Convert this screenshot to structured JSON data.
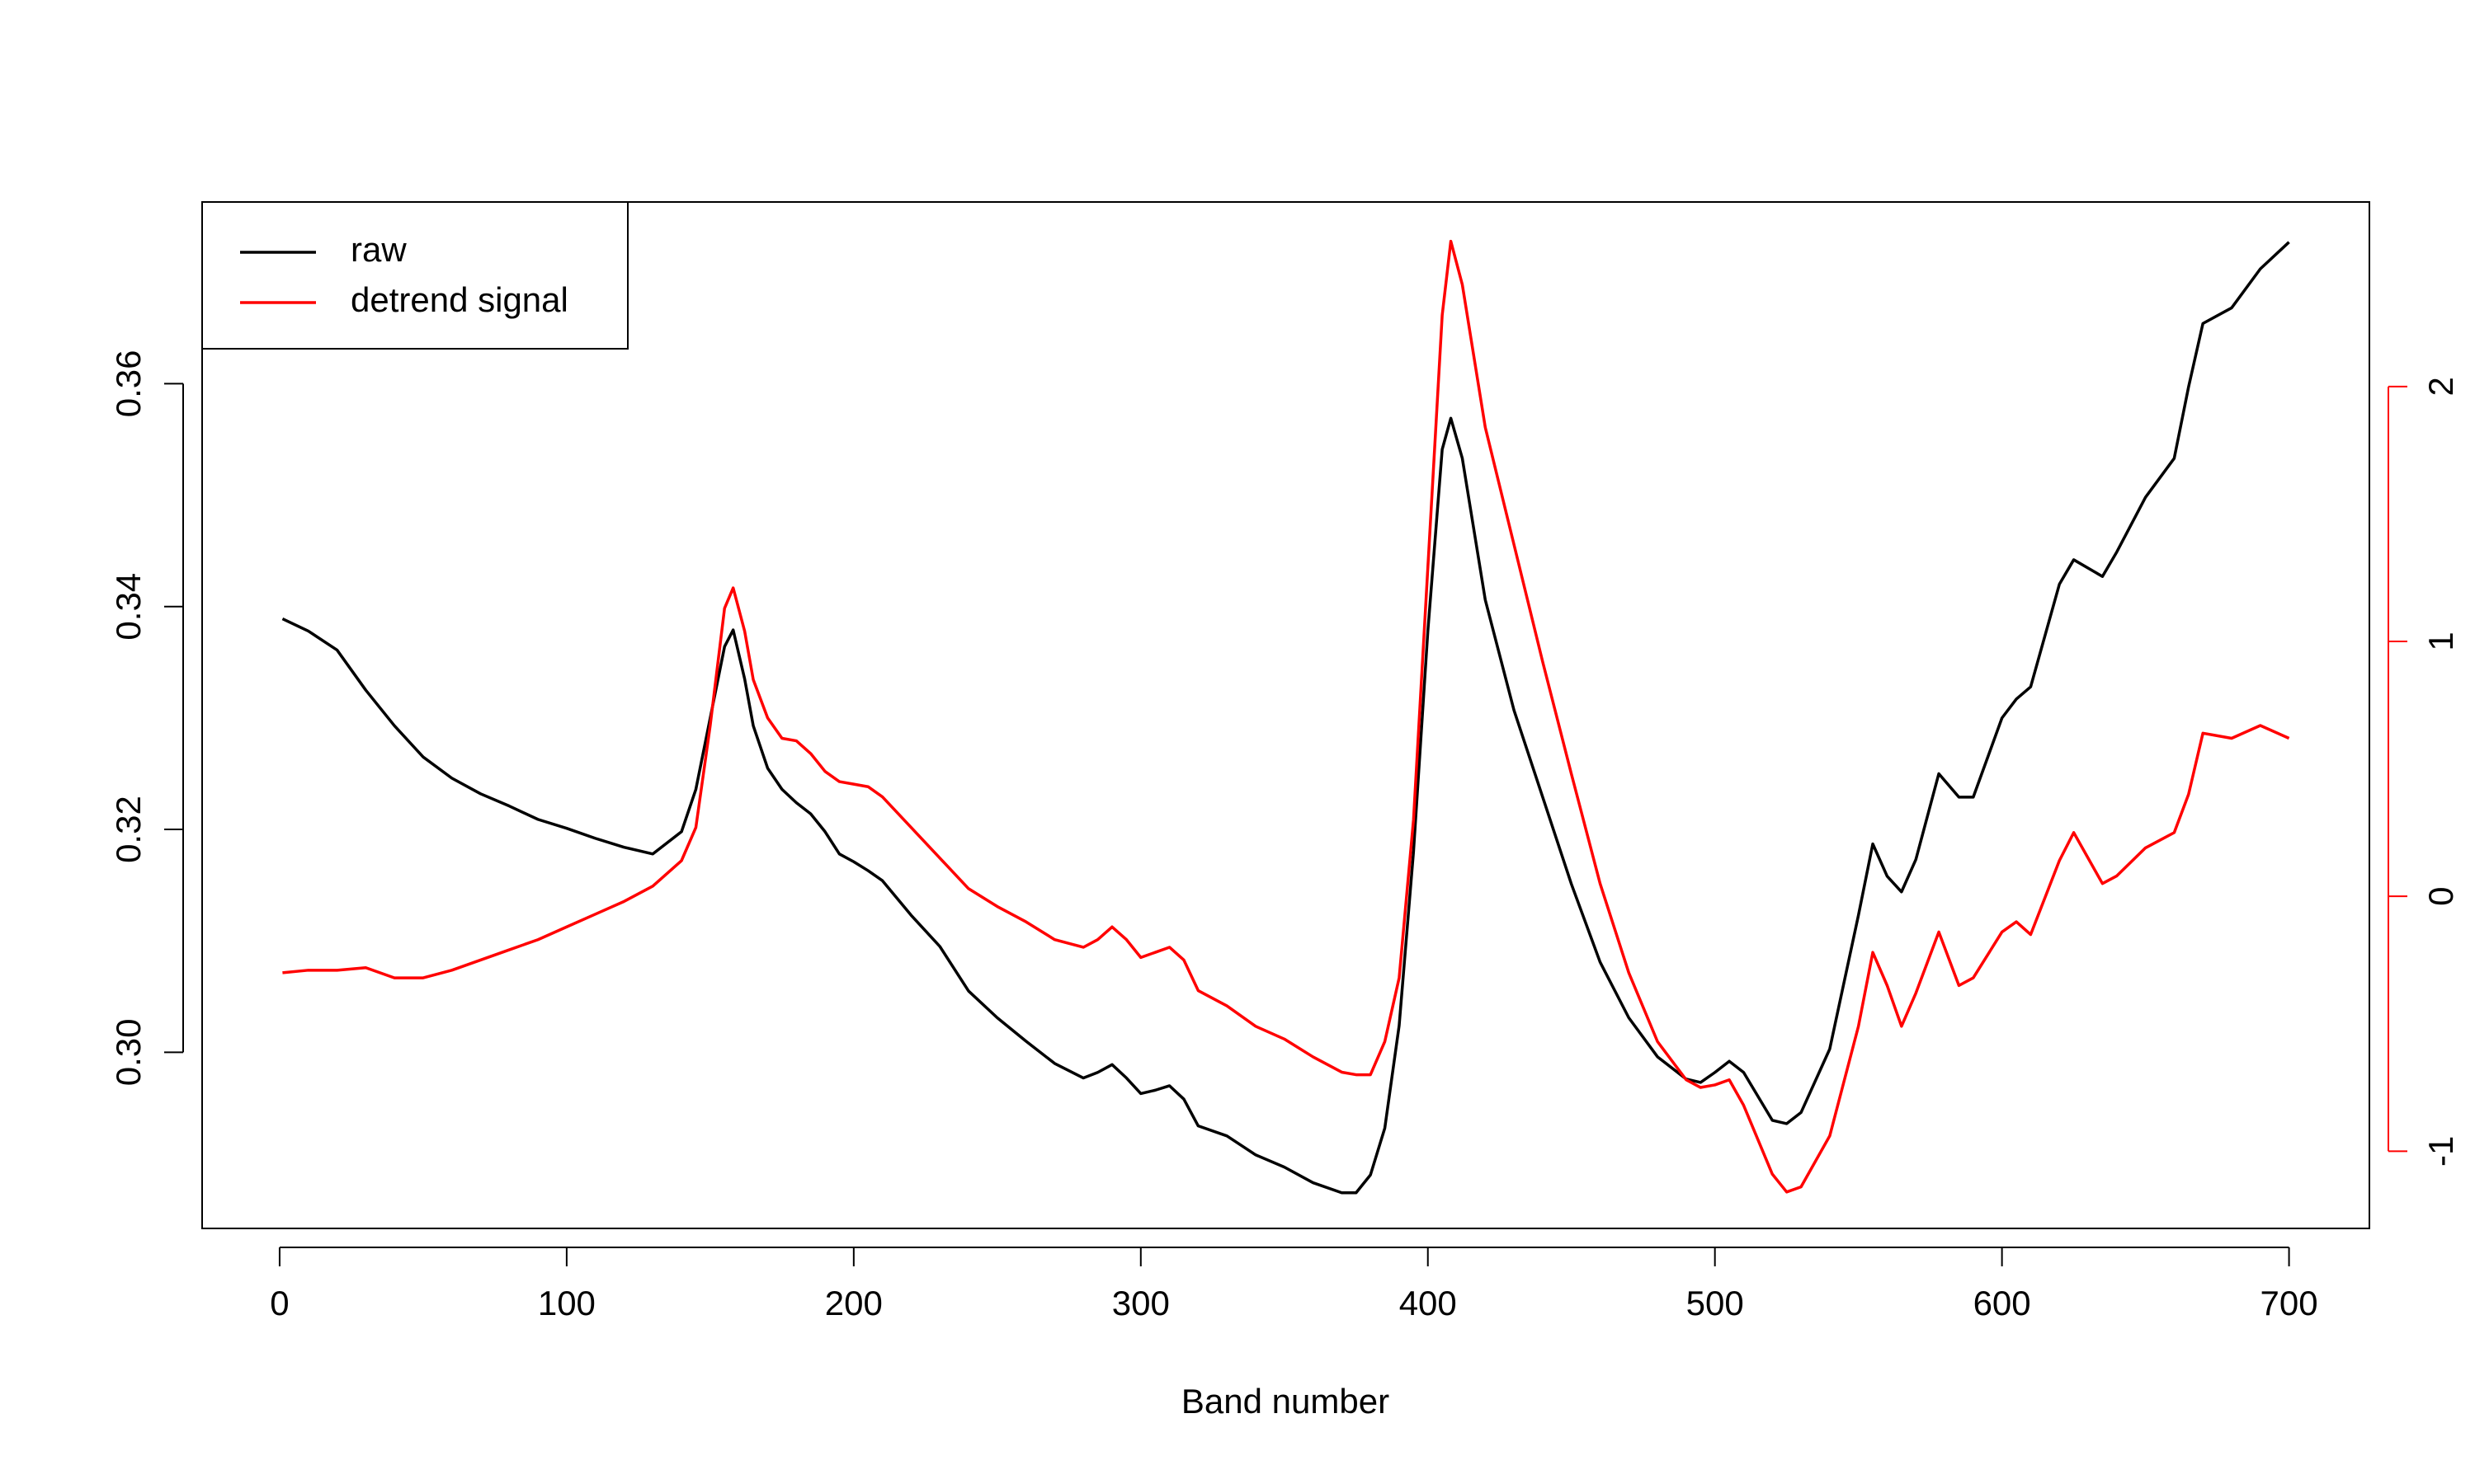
{
  "chart_data": {
    "type": "line",
    "xlabel": "Band number",
    "x": [
      1,
      10,
      20,
      30,
      40,
      50,
      60,
      70,
      80,
      90,
      100,
      110,
      120,
      130,
      140,
      145,
      150,
      155,
      158,
      162,
      165,
      170,
      175,
      180,
      185,
      190,
      195,
      200,
      205,
      210,
      220,
      230,
      240,
      250,
      260,
      270,
      280,
      285,
      290,
      295,
      300,
      305,
      310,
      315,
      320,
      330,
      340,
      350,
      360,
      370,
      375,
      380,
      385,
      390,
      395,
      400,
      405,
      408,
      412,
      420,
      430,
      440,
      450,
      460,
      470,
      480,
      490,
      495,
      500,
      505,
      510,
      520,
      525,
      530,
      540,
      550,
      555,
      560,
      565,
      570,
      578,
      585,
      590,
      600,
      605,
      610,
      620,
      625,
      635,
      640,
      650,
      660,
      665,
      670,
      680,
      690,
      700
    ],
    "series": [
      {
        "name": "raw",
        "color": "#000000",
        "axis": "y",
        "values": [
          0.3389,
          0.3378,
          0.3361,
          0.3325,
          0.3293,
          0.3265,
          0.3246,
          0.3232,
          0.3221,
          0.3209,
          0.3201,
          0.3192,
          0.3184,
          0.3178,
          0.3198,
          0.3236,
          0.33,
          0.3364,
          0.3379,
          0.3335,
          0.3293,
          0.3255,
          0.3236,
          0.3224,
          0.3214,
          0.3198,
          0.3178,
          0.3171,
          0.3163,
          0.3154,
          0.3123,
          0.3095,
          0.3055,
          0.3031,
          0.301,
          0.299,
          0.2977,
          0.2982,
          0.2989,
          0.2977,
          0.2963,
          0.2966,
          0.297,
          0.2958,
          0.2934,
          0.2925,
          0.2908,
          0.2897,
          0.2883,
          0.2874,
          0.2874,
          0.289,
          0.2932,
          0.3024,
          0.318,
          0.3378,
          0.3541,
          0.3569,
          0.3533,
          0.3406,
          0.3307,
          0.3229,
          0.3151,
          0.3081,
          0.3031,
          0.2996,
          0.2976,
          0.2973,
          0.2982,
          0.2992,
          0.2982,
          0.2939,
          0.2936,
          0.2946,
          0.3003,
          0.3123,
          0.3187,
          0.3158,
          0.3144,
          0.3173,
          0.325,
          0.3229,
          0.3229,
          0.33,
          0.3317,
          0.3328,
          0.342,
          0.3442,
          0.3427,
          0.3449,
          0.3498,
          0.3533,
          0.3597,
          0.3654,
          0.3668,
          0.3703,
          0.3727
        ]
      },
      {
        "name": "detrend signal",
        "color": "#ff0000",
        "axis": "y2",
        "values": [
          -0.3,
          -0.29,
          -0.29,
          -0.28,
          -0.32,
          -0.32,
          -0.29,
          -0.25,
          -0.21,
          -0.17,
          -0.12,
          -0.07,
          -0.02,
          0.04,
          0.14,
          0.27,
          0.67,
          1.13,
          1.21,
          1.04,
          0.85,
          0.7,
          0.62,
          0.61,
          0.56,
          0.49,
          0.45,
          0.44,
          0.43,
          0.39,
          0.27,
          0.15,
          0.03,
          -0.04,
          -0.1,
          -0.17,
          -0.2,
          -0.17,
          -0.12,
          -0.17,
          -0.24,
          -0.22,
          -0.2,
          -0.25,
          -0.37,
          -0.43,
          -0.51,
          -0.56,
          -0.63,
          -0.69,
          -0.7,
          -0.7,
          -0.57,
          -0.32,
          0.3,
          1.29,
          2.28,
          2.57,
          2.4,
          1.84,
          1.38,
          0.92,
          0.48,
          0.05,
          -0.3,
          -0.57,
          -0.72,
          -0.75,
          -0.74,
          -0.72,
          -0.82,
          -1.09,
          -1.16,
          -1.14,
          -0.94,
          -0.51,
          -0.22,
          -0.35,
          -0.51,
          -0.38,
          -0.14,
          -0.35,
          -0.32,
          -0.14,
          -0.1,
          -0.15,
          0.14,
          0.25,
          0.05,
          0.08,
          0.19,
          0.25,
          0.4,
          0.64,
          0.62,
          0.67,
          0.62
        ]
      }
    ],
    "xlim": [
      -27,
      728
    ],
    "xticks": [
      0,
      100,
      200,
      300,
      400,
      500,
      600,
      700
    ],
    "ylim": [
      0.2842,
      0.3763
    ],
    "yticks": [
      {
        "value": 0.3,
        "label": "0.30"
      },
      0.32,
      0.34,
      0.36
    ],
    "y2lim": [
      -1.303,
      2.724
    ],
    "y2ticks": [
      -1,
      0,
      1,
      2
    ],
    "y2color": "#ff0000",
    "legend": "top-left"
  }
}
